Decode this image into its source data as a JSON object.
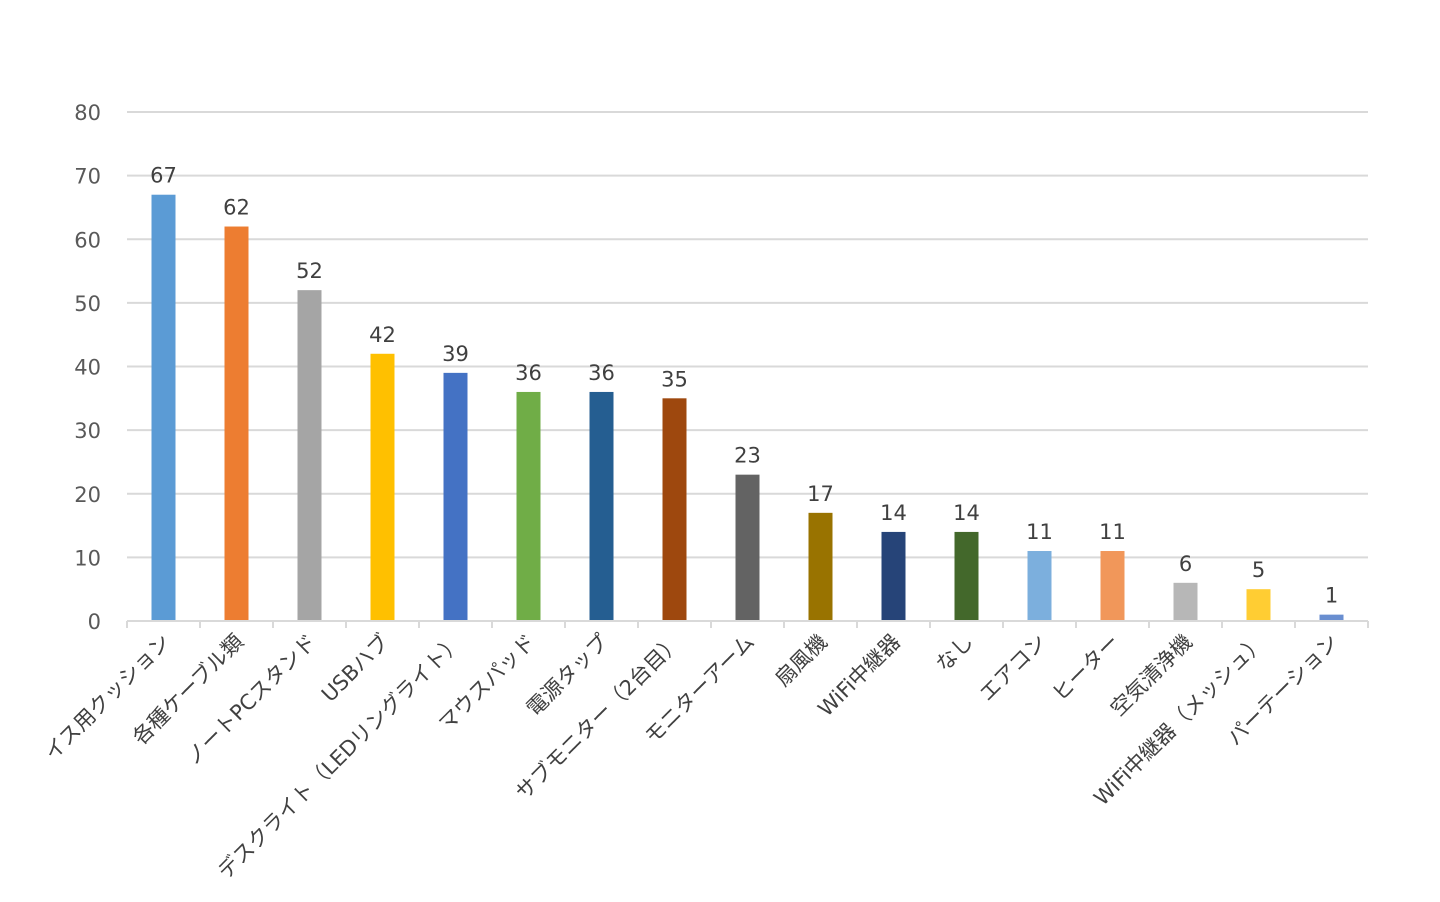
{
  "chart_data": {
    "type": "bar",
    "title": "",
    "xlabel": "",
    "ylabel": "",
    "ylim": [
      0,
      80
    ],
    "yticks": [
      0,
      10,
      20,
      30,
      40,
      50,
      60,
      70,
      80
    ],
    "grid": true,
    "legend": "none",
    "categories": [
      "イス用クッション",
      "各種ケーブル類",
      "ノートPCスタンド",
      "USBハブ",
      "デスクライト（LEDリングライト）",
      "マウスパッド",
      "電源タップ",
      "サブモニター（2台目）",
      "モニターアーム",
      "扇風機",
      "WiFi中継器",
      "なし",
      "エアコン",
      "ヒーター",
      "空気清浄機",
      "WiFi中継器（メッシュ）",
      "パーテーション"
    ],
    "values": [
      67,
      62,
      52,
      42,
      39,
      36,
      36,
      35,
      23,
      17,
      14,
      14,
      11,
      11,
      6,
      5,
      1
    ],
    "colors": [
      "#5b9bd5",
      "#ed7d31",
      "#a5a5a5",
      "#ffc000",
      "#4472c4",
      "#70ad47",
      "#255e91",
      "#9e480e",
      "#636363",
      "#997300",
      "#264478",
      "#43682b",
      "#7cafdd",
      "#f1975a",
      "#b7b7b7",
      "#ffcd33",
      "#698ed0"
    ]
  }
}
